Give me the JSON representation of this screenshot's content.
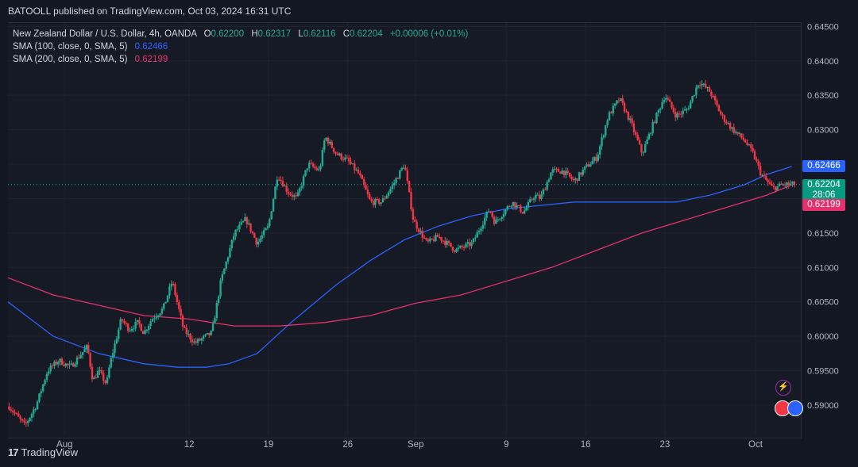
{
  "header": {
    "publisher": "BATOOLL published on TradingView.com, Oct 03, 2024 16:31 UTC"
  },
  "legend": {
    "symbol": "New Zealand Dollar / U.S. Dollar, 4h, OANDA",
    "open_label": "O",
    "open": "0.62200",
    "high_label": "H",
    "high": "0.62317",
    "low_label": "L",
    "low": "0.62116",
    "close_label": "C",
    "close": "0.62204",
    "change": "+0.00006 (+0.01%)",
    "sma100_label": "SMA (100, close, 0, SMA, 5)",
    "sma100_value": "0.62466",
    "sma200_label": "SMA (200, close, 0, SMA, 5)",
    "sma200_value": "0.62199"
  },
  "price_tags": {
    "sma100": "0.62466",
    "last": "0.62204",
    "countdown": "28:06",
    "sma200": "0.62199"
  },
  "footer": {
    "brand": "TradingView"
  },
  "colors": {
    "up": "#22ab94",
    "down": "#f23645",
    "sma100": "#2962ff",
    "sma200": "#e5306c",
    "background": "#161a25"
  },
  "chart_data": {
    "type": "line",
    "y_ticks": [
      "0.59000",
      "0.59500",
      "0.60000",
      "0.60500",
      "0.61000",
      "0.61500",
      "0.62000",
      "0.62500",
      "0.63000",
      "0.63500",
      "0.64000",
      "0.64500"
    ],
    "y_tick_values": [
      0.59,
      0.595,
      0.6,
      0.605,
      0.61,
      0.615,
      0.62,
      0.625,
      0.63,
      0.635,
      0.64,
      0.645
    ],
    "ylim": [
      0.5855,
      0.6455
    ],
    "x_ticks": [
      "Aug",
      "12",
      "19",
      "26",
      "Sep",
      "9",
      "16",
      "23",
      "Oct"
    ],
    "x_tick_days": [
      1,
      12,
      19,
      26,
      32,
      40,
      47,
      54,
      62
    ],
    "xlim_days": [
      -4.0,
      66.0
    ],
    "price_path": {
      "name": "NZD/USD 4h close",
      "x_days": [
        -4.0,
        -2.5,
        -1.5,
        -0.5,
        0.5,
        1.5,
        3.0,
        3.5,
        4.0,
        4.7,
        5.0,
        6.0,
        6.7,
        7.5,
        8.0,
        8.7,
        9.7,
        10.5,
        11.5,
        12.5,
        14.0,
        14.8,
        16.0,
        17.0,
        18.0,
        19.0,
        19.8,
        20.7,
        21.5,
        22.5,
        23.5,
        24.0,
        25.0,
        26.0,
        27.0,
        28.0,
        29.0,
        30.0,
        31.0,
        31.8,
        33.0,
        34.0,
        35.5,
        37.0,
        38.5,
        39.0,
        39.5,
        40.5,
        41.5,
        42.5,
        43.0,
        44.0,
        45.0,
        46.0,
        47.0,
        48.0,
        49.0,
        50.0,
        51.0,
        52.0,
        53.0,
        54.0,
        55.0,
        56.0,
        57.0,
        58.0,
        59.0,
        60.0,
        61.0,
        61.8,
        62.5,
        63.5,
        64.5,
        65.2,
        65.5
      ],
      "values": [
        0.59,
        0.587,
        0.59,
        0.595,
        0.5965,
        0.5955,
        0.5985,
        0.5935,
        0.595,
        0.593,
        0.596,
        0.6025,
        0.601,
        0.602,
        0.6005,
        0.6025,
        0.604,
        0.608,
        0.601,
        0.599,
        0.6005,
        0.608,
        0.615,
        0.617,
        0.6135,
        0.616,
        0.6235,
        0.621,
        0.62,
        0.625,
        0.624,
        0.629,
        0.6265,
        0.6255,
        0.6235,
        0.6195,
        0.6195,
        0.622,
        0.625,
        0.6168,
        0.6135,
        0.6145,
        0.6125,
        0.6135,
        0.6185,
        0.6165,
        0.6175,
        0.6195,
        0.618,
        0.6205,
        0.62,
        0.624,
        0.624,
        0.6225,
        0.6245,
        0.626,
        0.632,
        0.6345,
        0.631,
        0.6265,
        0.631,
        0.635,
        0.632,
        0.633,
        0.637,
        0.6355,
        0.632,
        0.63,
        0.6285,
        0.6265,
        0.6235,
        0.6215,
        0.62204,
        0.62204,
        0.62204
      ]
    },
    "series": [
      {
        "name": "SMA (100, close, 0, SMA, 5)",
        "x_days": [
          -4.0,
          0.0,
          4.0,
          8.0,
          11.0,
          13.5,
          15.5,
          18.0,
          21.0,
          25.0,
          28.0,
          31.0,
          34.0,
          37.0,
          40.0,
          43.0,
          46.0,
          49.0,
          52.0,
          55.0,
          58.0,
          61.0,
          63.0,
          65.2
        ],
        "values": [
          0.605,
          0.6,
          0.5975,
          0.596,
          0.5955,
          0.5955,
          0.596,
          0.5975,
          0.602,
          0.6075,
          0.611,
          0.614,
          0.616,
          0.6175,
          0.6185,
          0.619,
          0.6195,
          0.6195,
          0.6195,
          0.6195,
          0.6205,
          0.622,
          0.6235,
          0.62466
        ]
      },
      {
        "name": "SMA (200, close, 0, SMA, 5)",
        "x_days": [
          -4.0,
          0.0,
          4.0,
          8.0,
          12.0,
          16.0,
          20.0,
          24.0,
          28.0,
          32.0,
          36.0,
          40.0,
          44.0,
          48.0,
          52.0,
          56.0,
          60.0,
          63.0,
          65.2
        ],
        "values": [
          0.6085,
          0.606,
          0.6045,
          0.603,
          0.6025,
          0.6015,
          0.6015,
          0.602,
          0.603,
          0.6048,
          0.606,
          0.608,
          0.61,
          0.6125,
          0.615,
          0.617,
          0.619,
          0.6205,
          0.62199
        ]
      }
    ],
    "last_price": 0.62204,
    "legend_position": "top-left"
  }
}
